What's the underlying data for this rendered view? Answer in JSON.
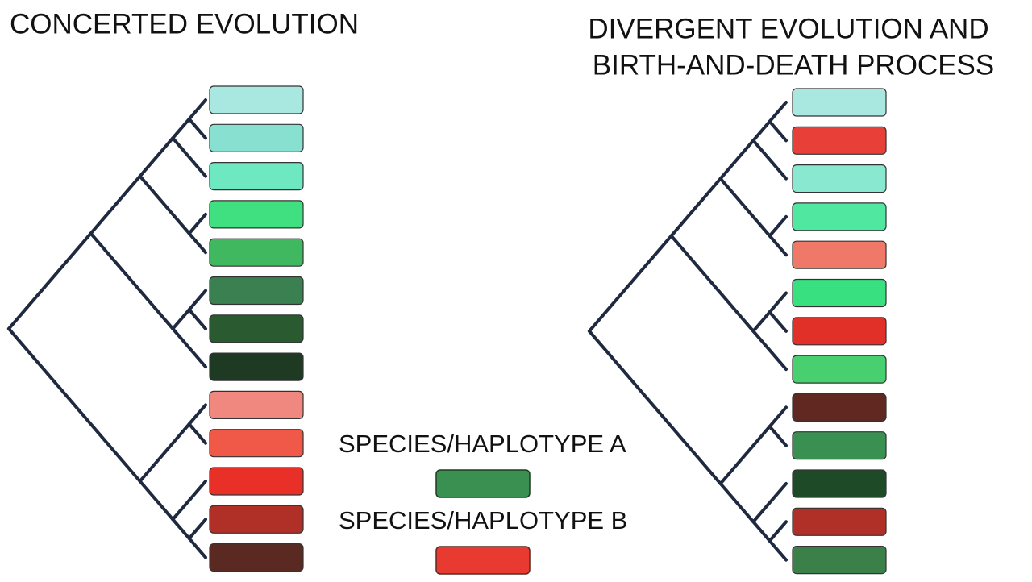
{
  "left_panel": {
    "title": "CONCERTED EVOLUTION"
  },
  "right_panel": {
    "title_lines": [
      "DIVERGENT EVOLUTION AND",
      "BIRTH-AND-DEATH PROCESS"
    ]
  },
  "legend": {
    "items": [
      {
        "label": "SPECIES/HAPLOTYPE A"
      },
      {
        "label": "SPECIES/HAPLOTYPE B"
      }
    ]
  }
}
